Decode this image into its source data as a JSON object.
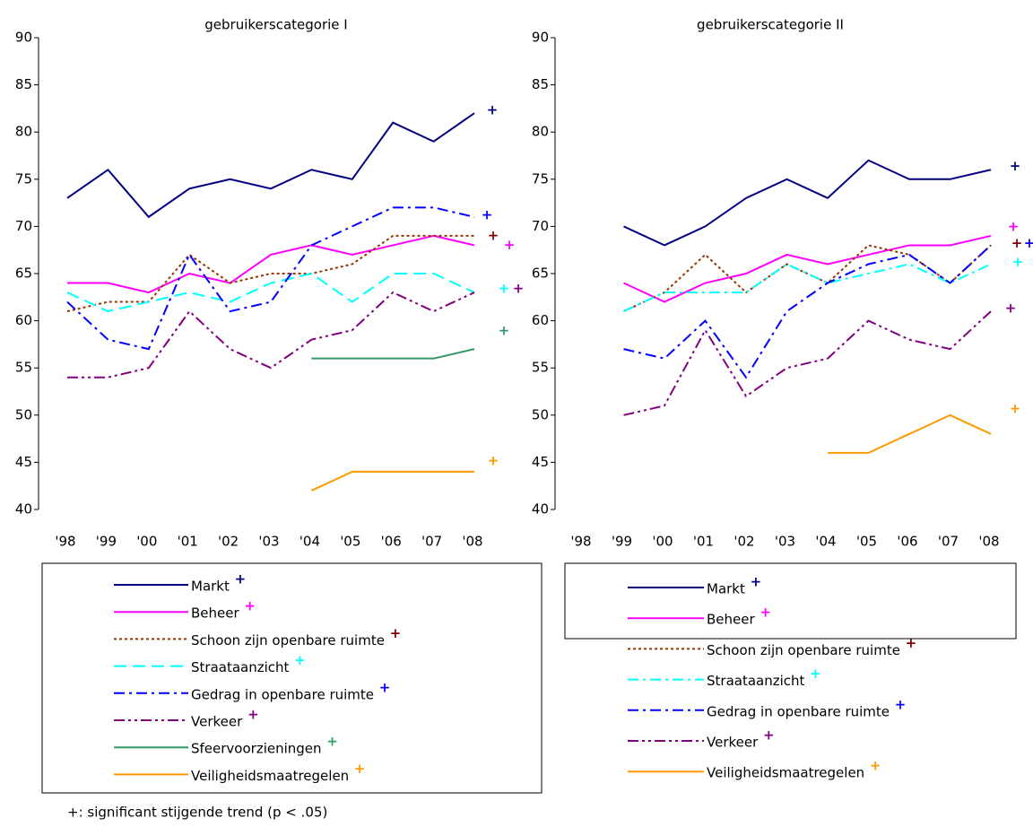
{
  "chart_data": [
    {
      "type": "line",
      "title": "gebruikerscategorie I",
      "categories": [
        "'98",
        "'99",
        "'00",
        "'01",
        "'02",
        "'03",
        "'04",
        "'05",
        "'06",
        "'07",
        "'08"
      ],
      "ylim": [
        40,
        90
      ],
      "yticks": [
        40,
        45,
        50,
        55,
        60,
        65,
        70,
        75,
        80,
        85,
        90
      ],
      "series": [
        {
          "name": "Markt",
          "color": "#000080",
          "style": "solid",
          "marker": "+",
          "marker_color": "#000080",
          "values": [
            73,
            76,
            71,
            74,
            75,
            74,
            76,
            75,
            81,
            79,
            82
          ]
        },
        {
          "name": "Beheer",
          "color": "#ff00ff",
          "style": "solid",
          "marker": "+",
          "marker_color": "#ff00ff",
          "values": [
            64,
            64,
            63,
            65,
            64,
            67,
            68,
            67,
            68,
            69,
            68
          ]
        },
        {
          "name": "Schoon zijn openbare ruimte",
          "color": "#993300",
          "style": "dotted",
          "marker": "+",
          "marker_color": "#800000",
          "values": [
            61,
            62,
            62,
            67,
            64,
            65,
            65,
            66,
            69,
            69,
            69
          ]
        },
        {
          "name": "Straataanzicht",
          "color": "#00ffff",
          "style": "dashed",
          "marker": "+",
          "marker_color": "#00ffff",
          "values": [
            63,
            61,
            62,
            63,
            62,
            64,
            65,
            62,
            65,
            65,
            63
          ]
        },
        {
          "name": "Gedrag in openbare ruimte",
          "color": "#0000ff",
          "style": "dashdot",
          "marker": "+",
          "marker_color": "#0000ff",
          "values": [
            62,
            58,
            57,
            67,
            61,
            62,
            68,
            70,
            72,
            72,
            71
          ]
        },
        {
          "name": "Verkeer",
          "color": "#800080",
          "style": "dashdotdot",
          "marker": "+",
          "marker_color": "#800080",
          "values": [
            54,
            54,
            55,
            61,
            57,
            55,
            58,
            59,
            63,
            61,
            63
          ]
        },
        {
          "name": "Sfeervoorzieningen",
          "color": "#339966",
          "style": "solid",
          "marker": "+",
          "marker_color": "#339966",
          "values": [
            null,
            null,
            null,
            null,
            null,
            null,
            56,
            56,
            56,
            56,
            57
          ]
        },
        {
          "name": "Veiligheidsmaatregelen",
          "color": "#ff9900",
          "style": "solid",
          "marker": "+",
          "marker_color": "#ff9900",
          "values": [
            null,
            null,
            null,
            null,
            null,
            null,
            42,
            44,
            44,
            44,
            44
          ]
        }
      ]
    },
    {
      "type": "line",
      "title": "gebruikerscategorie II",
      "categories": [
        "'98",
        "'99",
        "'00",
        "'01",
        "'02",
        "'03",
        "'04",
        "'05",
        "'06",
        "'07",
        "'08"
      ],
      "ylim": [
        40,
        90
      ],
      "yticks": [
        40,
        45,
        50,
        55,
        60,
        65,
        70,
        75,
        80,
        85,
        90
      ],
      "series": [
        {
          "name": "Markt",
          "color": "#000080",
          "style": "solid",
          "marker": "+",
          "marker_color": "#000080",
          "values": [
            null,
            70,
            68,
            70,
            73,
            75,
            73,
            77,
            75,
            75,
            76
          ]
        },
        {
          "name": "Beheer",
          "color": "#ff00ff",
          "style": "solid",
          "marker": "+",
          "marker_color": "#ff00ff",
          "values": [
            null,
            64,
            62,
            64,
            65,
            67,
            66,
            67,
            68,
            68,
            69
          ]
        },
        {
          "name": "Schoon zijn openbare ruimte",
          "color": "#993300",
          "style": "dotted",
          "marker": "+",
          "marker_color": "#800000",
          "values": [
            null,
            61,
            63,
            67,
            63,
            66,
            64,
            68,
            67,
            64,
            68
          ]
        },
        {
          "name": "Straataanzicht",
          "color": "#00ffff",
          "style": "dashdot",
          "marker": "+",
          "marker_color": "#00ffff",
          "values": [
            null,
            61,
            63,
            63,
            63,
            66,
            64,
            65,
            66,
            64,
            66
          ]
        },
        {
          "name": "Gedrag in openbare ruimte",
          "color": "#0000ff",
          "style": "dashdot",
          "marker": "+",
          "marker_color": "#0000ff",
          "values": [
            null,
            57,
            56,
            60,
            54,
            61,
            64,
            66,
            67,
            64,
            68
          ]
        },
        {
          "name": "Verkeer",
          "color": "#800080",
          "style": "dashdotdot",
          "marker": "+",
          "marker_color": "#800080",
          "values": [
            null,
            50,
            51,
            59,
            52,
            55,
            56,
            60,
            58,
            57,
            61
          ]
        },
        {
          "name": "Veiligheidsmaatregelen",
          "color": "#ff9900",
          "style": "solid",
          "marker": "+",
          "marker_color": "#ff9900",
          "values": [
            null,
            null,
            null,
            null,
            null,
            null,
            46,
            46,
            48,
            50,
            48
          ]
        }
      ]
    }
  ],
  "footnote": "+: significant stijgende trend (p < .05)"
}
